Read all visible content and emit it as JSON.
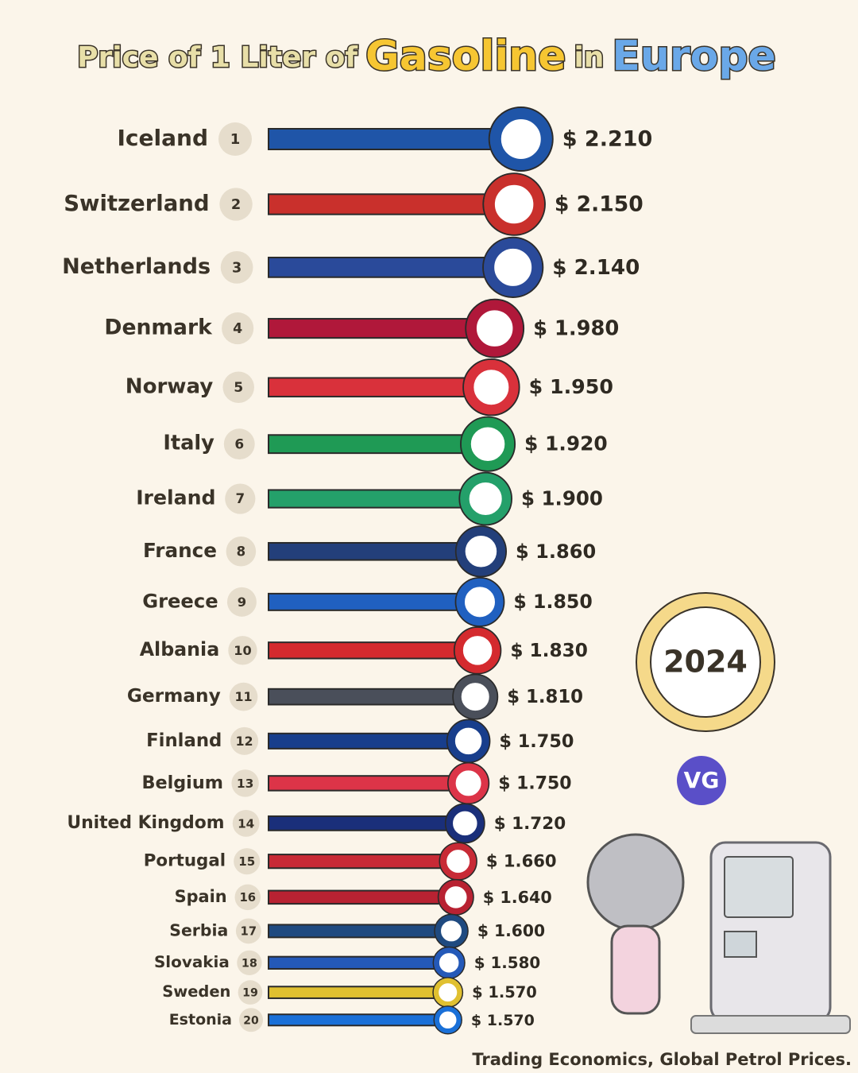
{
  "chart_data": {
    "type": "bar",
    "orientation": "horizontal",
    "title": [
      "Price of 1 Liter of",
      "Gasoline",
      "in",
      "Europe"
    ],
    "title_colors": [
      "#e8dfa8",
      "#f6c632",
      "#e8dfa8",
      "#6aa8e8"
    ],
    "categories": [
      "Iceland",
      "Switzerland",
      "Netherlands",
      "Denmark",
      "Norway",
      "Italy",
      "Ireland",
      "France",
      "Greece",
      "Albania",
      "Germany",
      "Finland",
      "Belgium",
      "United Kingdom",
      "Portugal",
      "Spain",
      "Serbia",
      "Slovakia",
      "Sweden",
      "Estonia"
    ],
    "ranks": [
      1,
      2,
      3,
      4,
      5,
      6,
      7,
      8,
      9,
      10,
      11,
      12,
      13,
      14,
      15,
      16,
      17,
      18,
      19,
      20
    ],
    "values": [
      2.21,
      2.15,
      2.14,
      1.98,
      1.95,
      1.92,
      1.9,
      1.86,
      1.85,
      1.83,
      1.81,
      1.75,
      1.75,
      1.72,
      1.66,
      1.64,
      1.6,
      1.58,
      1.57,
      1.57
    ],
    "value_labels": [
      "$ 2.210",
      "$ 2.150",
      "$ 2.140",
      "$ 1.980",
      "$ 1.950",
      "$ 1.920",
      "$ 1.900",
      "$ 1.860",
      "$ 1.850",
      "$ 1.830",
      "$ 1.810",
      "$ 1.750",
      "$ 1.750",
      "$ 1.720",
      "$ 1.660",
      "$ 1.640",
      "$ 1.600",
      "$ 1.580",
      "$ 1.570",
      "$ 1.570"
    ],
    "colors": [
      "#1f55a8",
      "#c9302c",
      "#2a4a9a",
      "#b0183a",
      "#d9313b",
      "#1f9a55",
      "#24a06a",
      "#233f7a",
      "#2060c0",
      "#d42a2e",
      "#4a4f5a",
      "#183e8c",
      "#dc3448",
      "#1a2f7a",
      "#c82a36",
      "#b82232",
      "#1f4a80",
      "#2459b8",
      "#e0c030",
      "#1a70d8"
    ],
    "xlim": [
      0,
      4.5
    ],
    "year": "2024",
    "logo": "VG",
    "source": "Trading Economics, Global Petrol Prices."
  }
}
